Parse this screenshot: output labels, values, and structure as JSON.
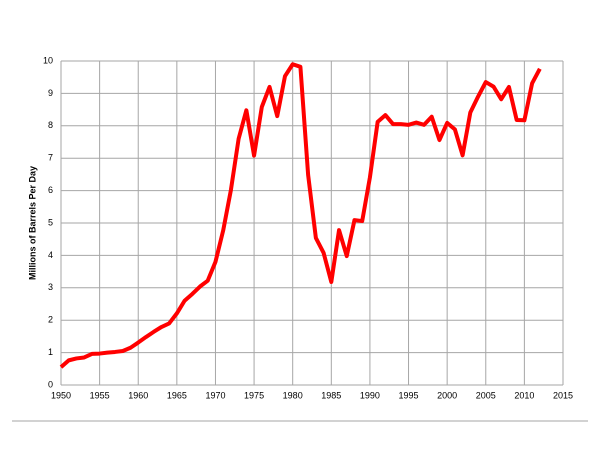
{
  "chart_data": {
    "type": "line",
    "y_label": "Millions of Barrels Per Day",
    "x": [
      1950,
      1951,
      1952,
      1953,
      1954,
      1955,
      1956,
      1957,
      1958,
      1959,
      1960,
      1961,
      1962,
      1963,
      1964,
      1965,
      1966,
      1967,
      1968,
      1969,
      1970,
      1971,
      1972,
      1973,
      1974,
      1975,
      1976,
      1977,
      1978,
      1979,
      1980,
      1981,
      1982,
      1983,
      1984,
      1985,
      1986,
      1987,
      1988,
      1989,
      1990,
      1991,
      1992,
      1993,
      1994,
      1995,
      1996,
      1997,
      1998,
      1999,
      2000,
      2001,
      2002,
      2003,
      2004,
      2005,
      2006,
      2007,
      2008,
      2009,
      2010,
      2011,
      2012
    ],
    "values": [
      0.55,
      0.76,
      0.82,
      0.85,
      0.96,
      0.97,
      1.0,
      1.02,
      1.05,
      1.15,
      1.31,
      1.48,
      1.64,
      1.79,
      1.9,
      2.21,
      2.6,
      2.81,
      3.04,
      3.22,
      3.8,
      4.77,
      6.02,
      7.6,
      8.48,
      7.08,
      8.58,
      9.2,
      8.3,
      9.53,
      9.9,
      9.82,
      6.48,
      4.54,
      4.08,
      3.18,
      4.78,
      3.98,
      5.09,
      5.06,
      6.41,
      8.12,
      8.33,
      8.05,
      8.05,
      8.03,
      8.1,
      8.03,
      8.28,
      7.56,
      8.09,
      7.89,
      7.09,
      8.41,
      8.9,
      9.35,
      9.21,
      8.82,
      9.2,
      8.18,
      8.17,
      9.31,
      9.76
    ],
    "color": "#ff0000",
    "xlim": [
      1950,
      2015
    ],
    "xticks": [
      1950,
      1955,
      1960,
      1965,
      1970,
      1975,
      1980,
      1985,
      1990,
      1995,
      2000,
      2005,
      2010,
      2015
    ],
    "ylim": [
      0,
      10
    ],
    "yticks": [
      0,
      1,
      2,
      3,
      4,
      5,
      6,
      7,
      8,
      9,
      10
    ],
    "grid": true
  }
}
